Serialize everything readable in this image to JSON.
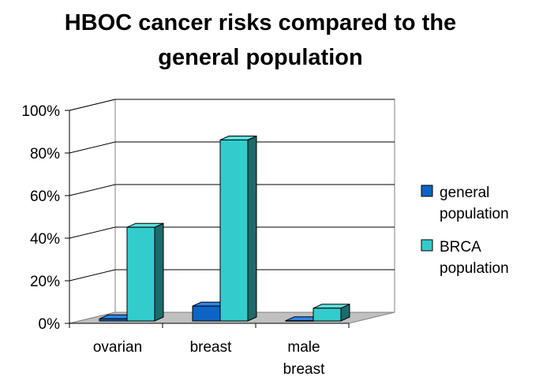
{
  "chart_data": {
    "type": "bar",
    "title_lines": [
      "HBOC cancer risks compared to the",
      "general population"
    ],
    "categories": [
      [
        "ovarian"
      ],
      [
        "breast"
      ],
      [
        "male",
        "breast"
      ]
    ],
    "series": [
      {
        "name_lines": [
          "general",
          "population"
        ],
        "values": [
          1,
          7,
          0.1
        ]
      },
      {
        "name_lines": [
          "BRCA",
          "population"
        ],
        "values": [
          44,
          85,
          6
        ]
      }
    ],
    "ylim": [
      0,
      100
    ],
    "yticks": [
      0,
      20,
      40,
      60,
      80,
      100
    ],
    "ytick_labels": [
      "0%",
      "20%",
      "40%",
      "60%",
      "80%",
      "100%"
    ],
    "grid": true,
    "legend_position": "right",
    "colors": {
      "series0_front": "#0c65c6",
      "series0_top": "#2e86e8",
      "series0_side": "#0a4f9c",
      "series1_front": "#33cccc",
      "series1_top": "#5fdede",
      "series1_side": "#1e6a6a",
      "floor": "#c0c0c0",
      "gridline": "#000000"
    }
  }
}
